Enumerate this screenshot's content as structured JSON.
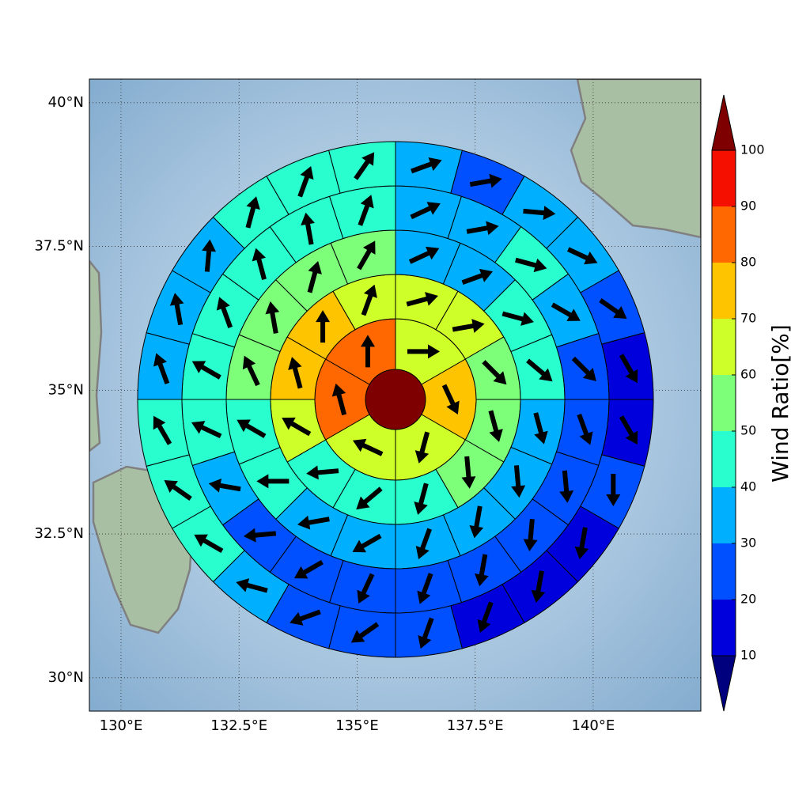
{
  "chart_data": {
    "type": "polar-sector-map",
    "xlim": [
      129.33,
      142.28
    ],
    "ylim": [
      29.42,
      40.41
    ],
    "xticks": [
      {
        "value": 130,
        "label": "130°E"
      },
      {
        "value": 132.5,
        "label": "132.5°E"
      },
      {
        "value": 135,
        "label": "135°E"
      },
      {
        "value": 137.5,
        "label": "137.5°E"
      },
      {
        "value": 140,
        "label": "140°E"
      }
    ],
    "yticks": [
      {
        "value": 30,
        "label": "30°N"
      },
      {
        "value": 32.5,
        "label": "32.5°N"
      },
      {
        "value": 35,
        "label": "35°N"
      },
      {
        "value": 37.5,
        "label": "37.5°N"
      },
      {
        "value": 40,
        "label": "40°N"
      }
    ],
    "grid": true,
    "center_value": 105,
    "rings": [
      {
        "values": [
          65,
          75,
          65,
          65,
          85,
          85
        ],
        "directions": [
          90,
          155,
          195,
          295,
          345,
          0
        ]
      },
      {
        "values": [
          65,
          65,
          55,
          55,
          55,
          45,
          45,
          45,
          65,
          75,
          75,
          65
        ],
        "directions": [
          75,
          80,
          135,
          165,
          175,
          195,
          230,
          265,
          300,
          345,
          0,
          20
        ]
      },
      {
        "values": [
          35,
          35,
          45,
          45,
          35,
          35,
          35,
          35,
          35,
          35,
          45,
          45,
          55,
          55,
          55,
          55
        ],
        "directions": [
          65,
          70,
          105,
          130,
          165,
          175,
          190,
          200,
          240,
          260,
          270,
          300,
          335,
          350,
          15,
          30
        ]
      },
      {
        "values": [
          35,
          35,
          45,
          35,
          25,
          25,
          25,
          25,
          25,
          25,
          25,
          25,
          25,
          35,
          45,
          45,
          45,
          45,
          45,
          45
        ],
        "directions": [
          65,
          80,
          105,
          120,
          135,
          160,
          175,
          185,
          190,
          200,
          205,
          240,
          265,
          280,
          295,
          300,
          340,
          345,
          350,
          20
        ]
      },
      {
        "values": [
          35,
          25,
          35,
          35,
          25,
          15,
          15,
          25,
          15,
          15,
          15,
          25,
          25,
          25,
          35,
          45,
          45,
          45,
          35,
          35,
          35,
          45,
          45,
          45
        ],
        "directions": [
          70,
          80,
          95,
          115,
          125,
          150,
          150,
          180,
          190,
          190,
          200,
          200,
          235,
          250,
          285,
          300,
          305,
          330,
          340,
          350,
          5,
          15,
          20,
          35
        ]
      }
    ],
    "colorbar": {
      "label": "Wind Ratio[%]",
      "ticks": [
        10,
        20,
        30,
        40,
        50,
        60,
        70,
        80,
        90,
        100
      ],
      "colors": [
        "#00007f",
        "#0000dd",
        "#0050ff",
        "#00b0ff",
        "#29ffce",
        "#7dff7a",
        "#ceff29",
        "#ffc400",
        "#ff6800",
        "#f50f00",
        "#7f0000"
      ]
    }
  }
}
